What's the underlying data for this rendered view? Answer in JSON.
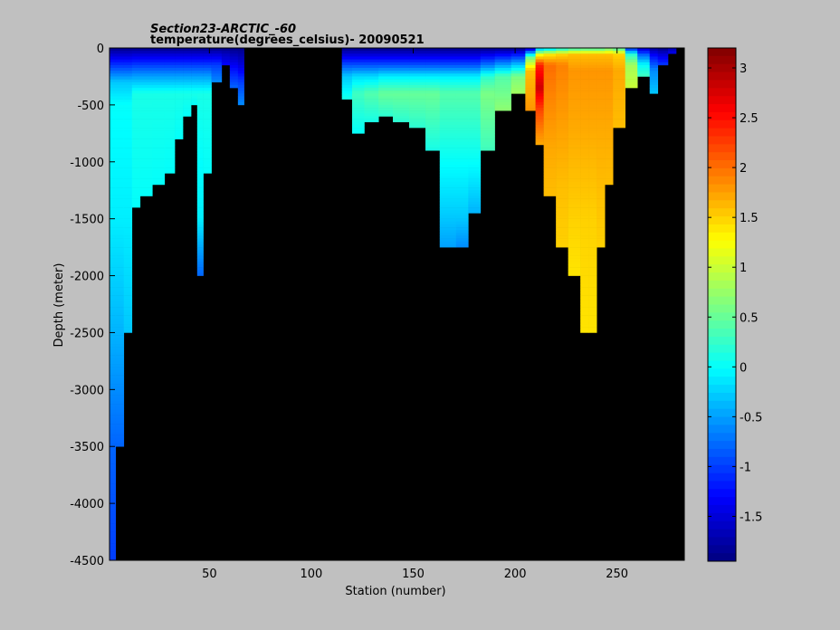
{
  "chart_data": {
    "type": "heatmap",
    "title": "Section23-ARCTIC_-60",
    "subtitle": "temperature(degrees_celsius)- 20090521",
    "xlabel": "Station (number)",
    "ylabel": "Depth (meter)",
    "xlim": [
      1,
      283
    ],
    "ylim": [
      -4500,
      0
    ],
    "x_ticks": [
      50,
      100,
      150,
      200,
      250
    ],
    "y_ticks": [
      0,
      -500,
      -1000,
      -1500,
      -2000,
      -2500,
      -3000,
      -3500,
      -4000,
      -4500
    ],
    "colorbar": {
      "range": [
        -1.95,
        3.2
      ],
      "ticks": [
        3,
        2.5,
        2,
        1.5,
        1,
        0.5,
        0,
        -0.5,
        -1,
        -1.5
      ],
      "colormap": "jet"
    },
    "background_color": "#000000",
    "note_values": "approximate profiles read from the figure; each profile = [station_start, station_end, max_depth_m, temperature_layers as [depth_m, temp_c]]",
    "profiles": [
      [
        1,
        4,
        4500,
        [
          [
            0,
            -1.9
          ],
          [
            50,
            -1.6
          ],
          [
            120,
            -1.2
          ],
          [
            200,
            -0.8
          ],
          [
            300,
            -0.3
          ],
          [
            500,
            0.0
          ],
          [
            1500,
            -0.1
          ],
          [
            2500,
            -0.4
          ],
          [
            3500,
            -0.8
          ],
          [
            4500,
            -1.0
          ]
        ]
      ],
      [
        4,
        8,
        3500,
        [
          [
            0,
            -1.9
          ],
          [
            50,
            -1.6
          ],
          [
            120,
            -1.2
          ],
          [
            200,
            -0.8
          ],
          [
            300,
            -0.3
          ],
          [
            500,
            0.0
          ],
          [
            1500,
            -0.1
          ],
          [
            2500,
            -0.4
          ],
          [
            3500,
            -0.8
          ]
        ]
      ],
      [
        8,
        12,
        2500,
        [
          [
            0,
            -1.9
          ],
          [
            50,
            -1.6
          ],
          [
            120,
            -1.2
          ],
          [
            200,
            -0.8
          ],
          [
            300,
            -0.3
          ],
          [
            500,
            0.0
          ],
          [
            1500,
            -0.1
          ],
          [
            2500,
            -0.3
          ]
        ]
      ],
      [
        12,
        16,
        1400,
        [
          [
            0,
            -1.9
          ],
          [
            60,
            -1.5
          ],
          [
            150,
            -1.0
          ],
          [
            250,
            -0.5
          ],
          [
            400,
            0.1
          ],
          [
            1400,
            0.0
          ]
        ]
      ],
      [
        16,
        22,
        1300,
        [
          [
            0,
            -1.9
          ],
          [
            60,
            -1.5
          ],
          [
            150,
            -1.0
          ],
          [
            250,
            -0.5
          ],
          [
            400,
            0.1
          ],
          [
            1300,
            0.0
          ]
        ]
      ],
      [
        22,
        28,
        1200,
        [
          [
            0,
            -1.9
          ],
          [
            60,
            -1.5
          ],
          [
            150,
            -1.0
          ],
          [
            250,
            -0.5
          ],
          [
            400,
            0.1
          ],
          [
            1200,
            0.0
          ]
        ]
      ],
      [
        28,
        33,
        1100,
        [
          [
            0,
            -1.9
          ],
          [
            60,
            -1.5
          ],
          [
            150,
            -1.0
          ],
          [
            250,
            -0.5
          ],
          [
            400,
            0.1
          ],
          [
            1100,
            0.0
          ]
        ]
      ],
      [
        33,
        37,
        800,
        [
          [
            0,
            -1.9
          ],
          [
            60,
            -1.5
          ],
          [
            150,
            -1.0
          ],
          [
            250,
            -0.5
          ],
          [
            400,
            0.1
          ],
          [
            800,
            0.0
          ]
        ]
      ],
      [
        37,
        41,
        600,
        [
          [
            0,
            -1.9
          ],
          [
            60,
            -1.5
          ],
          [
            150,
            -1.0
          ],
          [
            250,
            -0.5
          ],
          [
            400,
            0.1
          ],
          [
            600,
            0.0
          ]
        ]
      ],
      [
        41,
        44,
        500,
        [
          [
            0,
            -1.9
          ],
          [
            60,
            -1.5
          ],
          [
            150,
            -1.0
          ],
          [
            250,
            -0.5
          ],
          [
            400,
            0.1
          ],
          [
            500,
            0.0
          ]
        ]
      ],
      [
        44,
        47,
        2000,
        [
          [
            0,
            -1.9
          ],
          [
            60,
            -1.5
          ],
          [
            150,
            -1.0
          ],
          [
            250,
            -0.5
          ],
          [
            400,
            0.1
          ],
          [
            1500,
            -0.1
          ],
          [
            2000,
            -0.8
          ]
        ]
      ],
      [
        47,
        51,
        1100,
        [
          [
            0,
            -1.9
          ],
          [
            60,
            -1.5
          ],
          [
            150,
            -1.0
          ],
          [
            250,
            -0.5
          ],
          [
            400,
            0.1
          ],
          [
            1100,
            0.0
          ]
        ]
      ],
      [
        51,
        56,
        300,
        [
          [
            0,
            -1.9
          ],
          [
            60,
            -1.5
          ],
          [
            150,
            -1.0
          ],
          [
            300,
            -0.6
          ]
        ]
      ],
      [
        56,
        60,
        150,
        [
          [
            0,
            -1.9
          ],
          [
            60,
            -1.6
          ],
          [
            150,
            -1.3
          ]
        ]
      ],
      [
        60,
        64,
        350,
        [
          [
            0,
            -1.9
          ],
          [
            80,
            -1.6
          ],
          [
            200,
            -1.2
          ],
          [
            350,
            -0.8
          ]
        ]
      ],
      [
        64,
        67,
        500,
        [
          [
            0,
            -1.9
          ],
          [
            150,
            -1.5
          ],
          [
            300,
            -1.0
          ],
          [
            500,
            -0.6
          ]
        ]
      ],
      [
        115,
        120,
        450,
        [
          [
            0,
            -1.9
          ],
          [
            60,
            -1.5
          ],
          [
            150,
            -0.9
          ],
          [
            250,
            -0.3
          ],
          [
            450,
            0.1
          ]
        ]
      ],
      [
        120,
        126,
        750,
        [
          [
            0,
            -1.9
          ],
          [
            60,
            -1.5
          ],
          [
            150,
            -0.9
          ],
          [
            250,
            -0.2
          ],
          [
            400,
            0.3
          ],
          [
            750,
            0.0
          ]
        ]
      ],
      [
        126,
        133,
        650,
        [
          [
            0,
            -1.9
          ],
          [
            60,
            -1.5
          ],
          [
            150,
            -0.9
          ],
          [
            250,
            -0.2
          ],
          [
            400,
            0.4
          ],
          [
            650,
            0.1
          ]
        ]
      ],
      [
        133,
        140,
        600,
        [
          [
            0,
            -1.9
          ],
          [
            60,
            -1.5
          ],
          [
            150,
            -0.9
          ],
          [
            250,
            -0.1
          ],
          [
            400,
            0.5
          ],
          [
            600,
            0.2
          ]
        ]
      ],
      [
        140,
        148,
        650,
        [
          [
            0,
            -1.9
          ],
          [
            60,
            -1.5
          ],
          [
            150,
            -0.9
          ],
          [
            250,
            -0.1
          ],
          [
            400,
            0.5
          ],
          [
            650,
            0.2
          ]
        ]
      ],
      [
        148,
        156,
        700,
        [
          [
            0,
            -1.9
          ],
          [
            60,
            -1.5
          ],
          [
            150,
            -0.9
          ],
          [
            250,
            -0.1
          ],
          [
            400,
            0.5
          ],
          [
            700,
            0.2
          ]
        ]
      ],
      [
        156,
        163,
        900,
        [
          [
            0,
            -1.9
          ],
          [
            60,
            -1.5
          ],
          [
            150,
            -0.9
          ],
          [
            250,
            -0.1
          ],
          [
            400,
            0.5
          ],
          [
            900,
            0.1
          ]
        ]
      ],
      [
        163,
        171,
        1750,
        [
          [
            0,
            -1.9
          ],
          [
            60,
            -1.5
          ],
          [
            150,
            -0.9
          ],
          [
            250,
            -0.1
          ],
          [
            400,
            0.4
          ],
          [
            1000,
            0.0
          ],
          [
            1500,
            -0.3
          ],
          [
            1750,
            -0.5
          ]
        ]
      ],
      [
        171,
        177,
        1750,
        [
          [
            0,
            -1.9
          ],
          [
            60,
            -1.5
          ],
          [
            150,
            -0.9
          ],
          [
            250,
            -0.1
          ],
          [
            400,
            0.4
          ],
          [
            1000,
            0.0
          ],
          [
            1500,
            -0.3
          ],
          [
            1750,
            -0.6
          ]
        ]
      ],
      [
        177,
        183,
        1450,
        [
          [
            0,
            -1.9
          ],
          [
            60,
            -1.5
          ],
          [
            150,
            -0.9
          ],
          [
            250,
            -0.1
          ],
          [
            400,
            0.4
          ],
          [
            1000,
            0.0
          ],
          [
            1450,
            -0.4
          ]
        ]
      ],
      [
        183,
        190,
        900,
        [
          [
            0,
            -1.9
          ],
          [
            60,
            -1.4
          ],
          [
            150,
            -0.7
          ],
          [
            250,
            0.2
          ],
          [
            400,
            0.6
          ],
          [
            900,
            0.3
          ]
        ]
      ],
      [
        190,
        198,
        550,
        [
          [
            0,
            -1.9
          ],
          [
            60,
            -1.3
          ],
          [
            150,
            -0.5
          ],
          [
            250,
            0.4
          ],
          [
            550,
            0.7
          ]
        ]
      ],
      [
        198,
        205,
        400,
        [
          [
            0,
            -1.9
          ],
          [
            60,
            -1.2
          ],
          [
            150,
            -0.3
          ],
          [
            250,
            0.6
          ],
          [
            400,
            0.8
          ]
        ]
      ],
      [
        205,
        210,
        550,
        [
          [
            0,
            -1.7
          ],
          [
            80,
            0.5
          ],
          [
            200,
            1.6
          ],
          [
            550,
            1.8
          ]
        ]
      ],
      [
        210,
        214,
        850,
        [
          [
            0,
            -0.5
          ],
          [
            60,
            1.2
          ],
          [
            150,
            2.4
          ],
          [
            350,
            2.8
          ],
          [
            550,
            2.2
          ],
          [
            850,
            1.7
          ]
        ]
      ],
      [
        214,
        220,
        1300,
        [
          [
            0,
            -0.3
          ],
          [
            60,
            1.4
          ],
          [
            150,
            2.0
          ],
          [
            400,
            1.9
          ],
          [
            900,
            1.7
          ],
          [
            1300,
            1.6
          ]
        ]
      ],
      [
        220,
        226,
        1750,
        [
          [
            0,
            0.0
          ],
          [
            60,
            1.5
          ],
          [
            150,
            1.9
          ],
          [
            500,
            1.8
          ],
          [
            1200,
            1.6
          ],
          [
            1750,
            1.5
          ]
        ]
      ],
      [
        226,
        232,
        2000,
        [
          [
            0,
            0.2
          ],
          [
            60,
            1.6
          ],
          [
            200,
            1.8
          ],
          [
            700,
            1.7
          ],
          [
            1500,
            1.5
          ],
          [
            2000,
            1.4
          ]
        ]
      ],
      [
        232,
        236,
        2500,
        [
          [
            0,
            0.3
          ],
          [
            60,
            1.6
          ],
          [
            200,
            1.8
          ],
          [
            700,
            1.7
          ],
          [
            1500,
            1.5
          ],
          [
            2500,
            1.4
          ]
        ]
      ],
      [
        236,
        240,
        2500,
        [
          [
            0,
            0.3
          ],
          [
            60,
            1.6
          ],
          [
            200,
            1.8
          ],
          [
            700,
            1.7
          ],
          [
            1500,
            1.5
          ],
          [
            2500,
            1.4
          ]
        ]
      ],
      [
        240,
        244,
        1750,
        [
          [
            0,
            0.3
          ],
          [
            60,
            1.6
          ],
          [
            200,
            1.8
          ],
          [
            700,
            1.7
          ],
          [
            1750,
            1.5
          ]
        ]
      ],
      [
        244,
        248,
        1200,
        [
          [
            0,
            0.5
          ],
          [
            60,
            1.6
          ],
          [
            200,
            1.8
          ],
          [
            700,
            1.7
          ],
          [
            1200,
            1.6
          ]
        ]
      ],
      [
        248,
        254,
        700,
        [
          [
            0,
            0.3
          ],
          [
            60,
            1.5
          ],
          [
            200,
            1.7
          ],
          [
            700,
            1.6
          ]
        ]
      ],
      [
        254,
        260,
        350,
        [
          [
            0,
            -1.2
          ],
          [
            60,
            0.2
          ],
          [
            150,
            0.8
          ],
          [
            350,
            1.0
          ]
        ]
      ],
      [
        260,
        266,
        250,
        [
          [
            0,
            -1.6
          ],
          [
            60,
            -0.8
          ],
          [
            150,
            0.0
          ],
          [
            250,
            0.3
          ]
        ]
      ],
      [
        266,
        270,
        400,
        [
          [
            0,
            -1.8
          ],
          [
            80,
            -1.2
          ],
          [
            200,
            -0.6
          ],
          [
            400,
            -0.3
          ]
        ]
      ],
      [
        270,
        275,
        150,
        [
          [
            0,
            -1.9
          ],
          [
            60,
            -1.5
          ],
          [
            150,
            -1.0
          ]
        ]
      ],
      [
        275,
        279,
        50,
        [
          [
            0,
            -1.7
          ],
          [
            50,
            -1.4
          ]
        ]
      ]
    ]
  }
}
